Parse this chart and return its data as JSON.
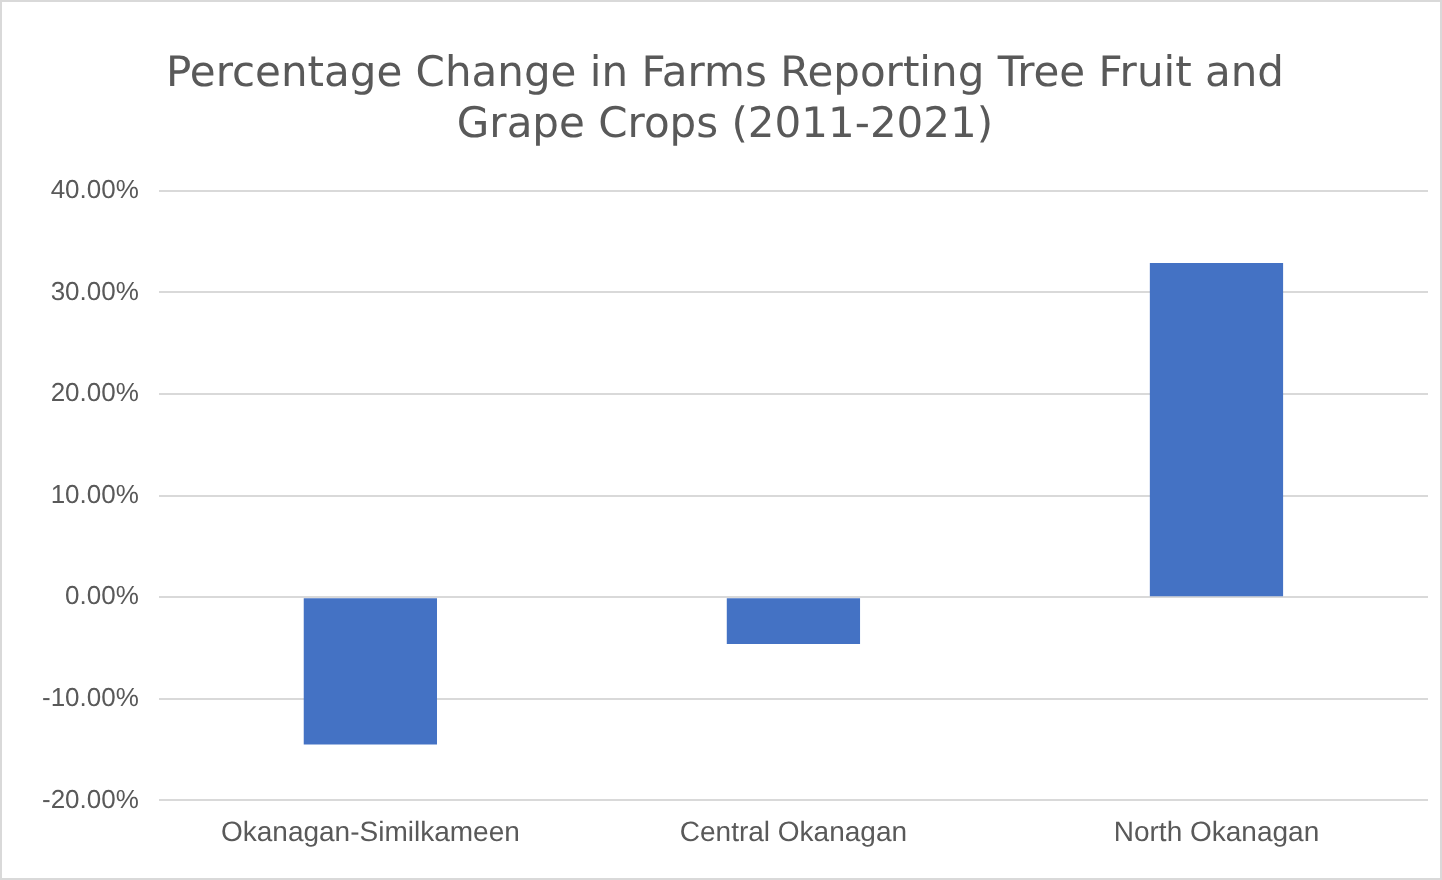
{
  "chart_data": {
    "type": "bar",
    "title": "Percentage Change in Farms Reporting Tree Fruit and Grape Crops (2011-2021)",
    "categories": [
      "Okanagan-Similkameen",
      "Central Okanagan",
      "North Okanagan"
    ],
    "values": [
      -14.5,
      -4.6,
      32.9
    ],
    "color": "#4472c4",
    "ylim": [
      -20,
      40
    ],
    "yticks": [
      {
        "value": -20,
        "label": "-20.00%"
      },
      {
        "value": -10,
        "label": "-10.00%"
      },
      {
        "value": 0,
        "label": "0.00%"
      },
      {
        "value": 10,
        "label": "10.00%"
      },
      {
        "value": 20,
        "label": "20.00%"
      },
      {
        "value": 30,
        "label": "30.00%"
      },
      {
        "value": 40,
        "label": "40.00%"
      }
    ],
    "grid": true,
    "legend": false
  }
}
